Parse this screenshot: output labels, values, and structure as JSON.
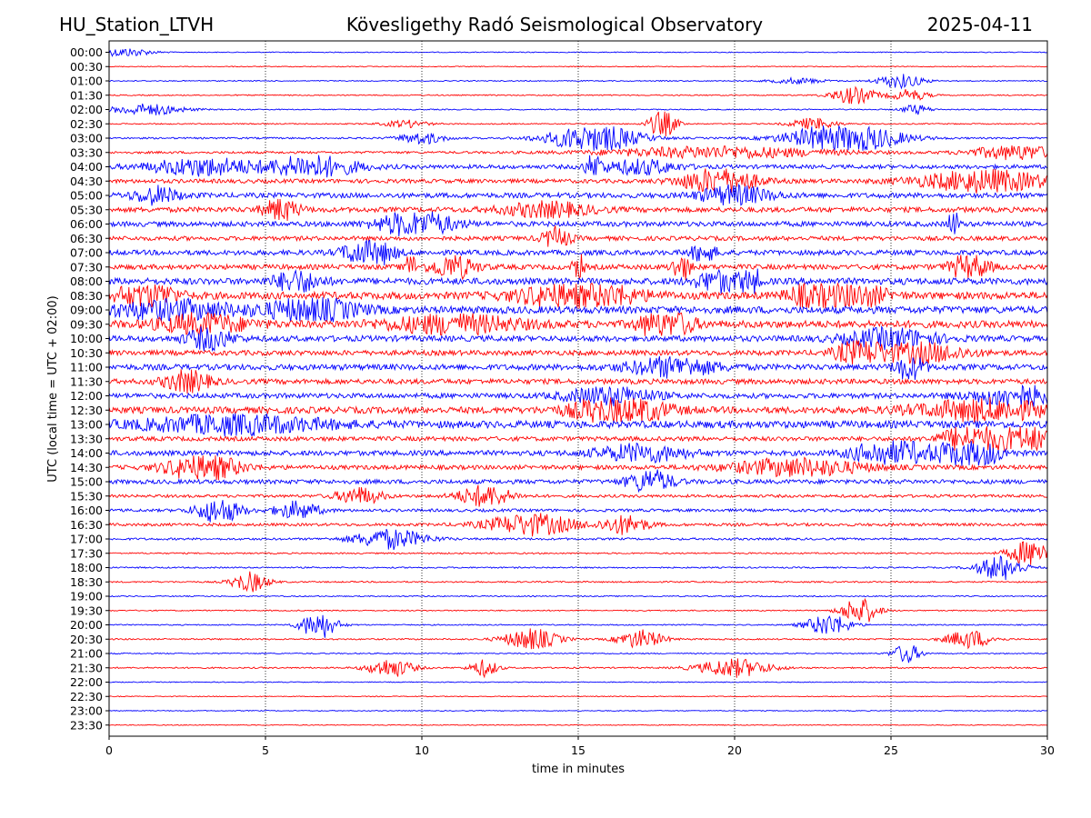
{
  "header": {
    "station": "HU_Station_LTVH",
    "observatory": "Kövesligethy Radó Seismological Observatory",
    "date": "2025-04-11"
  },
  "colors": {
    "even_trace": "#0000ff",
    "odd_trace": "#ff0000",
    "grid": "#000000"
  },
  "chart_data": {
    "type": "line",
    "title": "",
    "xlabel": "time in minutes",
    "ylabel": "UTC (local time = UTC + 02:00)",
    "xlim": [
      0,
      30
    ],
    "x_ticks": [
      "0",
      "5",
      "10",
      "15",
      "20",
      "25",
      "30"
    ],
    "x_gridlines": [
      5,
      10,
      15,
      20,
      25
    ],
    "grid": "vertical dotted",
    "series": [
      {
        "label": "00:00",
        "amplitude": 0.06,
        "bursts": [
          [
            0.5,
            0.6,
            0.6
          ]
        ]
      },
      {
        "label": "00:30",
        "amplitude": 0.06,
        "bursts": []
      },
      {
        "label": "01:00",
        "amplitude": 0.07,
        "bursts": [
          [
            25.3,
            0.5,
            1.0
          ],
          [
            22.0,
            0.6,
            0.4
          ]
        ]
      },
      {
        "label": "01:30",
        "amplitude": 0.08,
        "bursts": [
          [
            23.8,
            0.5,
            1.2
          ],
          [
            25.6,
            0.4,
            0.8
          ]
        ]
      },
      {
        "label": "02:00",
        "amplitude": 0.08,
        "bursts": [
          [
            1.2,
            0.8,
            0.8
          ],
          [
            25.8,
            0.3,
            0.7
          ]
        ]
      },
      {
        "label": "02:30",
        "amplitude": 0.08,
        "bursts": [
          [
            17.7,
            0.3,
            2.0
          ],
          [
            22.5,
            0.5,
            0.8
          ],
          [
            9.5,
            0.5,
            0.5
          ]
        ]
      },
      {
        "label": "03:00",
        "amplitude": 0.12,
        "bursts": [
          [
            15.5,
            1.0,
            2.0
          ],
          [
            23.5,
            1.2,
            2.2
          ],
          [
            10.0,
            0.5,
            0.8
          ]
        ]
      },
      {
        "label": "03:30",
        "amplitude": 0.16,
        "bursts": [
          [
            19.5,
            2.5,
            0.8
          ],
          [
            29.0,
            1.0,
            1.0
          ]
        ]
      },
      {
        "label": "04:00",
        "amplitude": 0.28,
        "bursts": [
          [
            6.5,
            1.0,
            1.5
          ],
          [
            3.0,
            1.2,
            1.2
          ],
          [
            15.5,
            0.2,
            1.6
          ],
          [
            17.0,
            0.8,
            1.0
          ]
        ]
      },
      {
        "label": "04:30",
        "amplitude": 0.28,
        "bursts": [
          [
            19.5,
            0.8,
            2.0
          ],
          [
            28.0,
            1.5,
            1.5
          ]
        ]
      },
      {
        "label": "05:00",
        "amplitude": 0.35,
        "bursts": [
          [
            1.5,
            0.5,
            1.2
          ],
          [
            20.0,
            0.8,
            1.3
          ]
        ]
      },
      {
        "label": "05:30",
        "amplitude": 0.35,
        "bursts": [
          [
            5.5,
            0.4,
            1.5
          ],
          [
            14.0,
            1.0,
            1.0
          ]
        ]
      },
      {
        "label": "06:00",
        "amplitude": 0.35,
        "bursts": [
          [
            9.8,
            0.8,
            2.0
          ],
          [
            27.0,
            0.1,
            3.0
          ]
        ]
      },
      {
        "label": "06:30",
        "amplitude": 0.3,
        "bursts": [
          [
            14.3,
            0.3,
            1.5
          ]
        ]
      },
      {
        "label": "07:00",
        "amplitude": 0.35,
        "bursts": [
          [
            8.3,
            0.5,
            2.5
          ],
          [
            19.0,
            0.3,
            1.2
          ]
        ]
      },
      {
        "label": "07:30",
        "amplitude": 0.35,
        "bursts": [
          [
            9.6,
            0.1,
            4.0
          ],
          [
            15.0,
            0.1,
            3.8
          ],
          [
            11.0,
            0.5,
            1.6
          ],
          [
            18.3,
            0.2,
            2.0
          ],
          [
            27.5,
            0.4,
            2.0
          ]
        ]
      },
      {
        "label": "08:00",
        "amplitude": 0.45,
        "bursts": [
          [
            20.5,
            0.15,
            5.5
          ],
          [
            19.5,
            0.5,
            1.5
          ],
          [
            6.0,
            0.5,
            1.5
          ]
        ]
      },
      {
        "label": "08:30",
        "amplitude": 0.5,
        "bursts": [
          [
            1.2,
            0.6,
            2.2
          ],
          [
            15.0,
            1.2,
            2.2
          ],
          [
            22.5,
            0.5,
            2.0
          ],
          [
            24.0,
            0.6,
            1.5
          ]
        ]
      },
      {
        "label": "09:00",
        "amplitude": 0.5,
        "bursts": [
          [
            6.5,
            1.0,
            1.6
          ],
          [
            2.0,
            1.5,
            1.2
          ]
        ]
      },
      {
        "label": "09:30",
        "amplitude": 0.5,
        "bursts": [
          [
            17.8,
            0.5,
            3.0
          ],
          [
            3.0,
            1.0,
            1.3
          ],
          [
            11.0,
            1.5,
            1.2
          ]
        ]
      },
      {
        "label": "10:00",
        "amplitude": 0.4,
        "bursts": [
          [
            3.2,
            0.5,
            1.5
          ],
          [
            25.0,
            1.0,
            1.3
          ]
        ]
      },
      {
        "label": "10:30",
        "amplitude": 0.35,
        "bursts": [
          [
            24.0,
            0.5,
            2.0
          ],
          [
            26.0,
            1.0,
            1.3
          ]
        ]
      },
      {
        "label": "11:00",
        "amplitude": 0.4,
        "bursts": [
          [
            25.6,
            0.3,
            2.2
          ],
          [
            18.0,
            1.0,
            1.3
          ]
        ]
      },
      {
        "label": "11:30",
        "amplitude": 0.35,
        "bursts": [
          [
            2.5,
            0.5,
            1.5
          ]
        ]
      },
      {
        "label": "12:00",
        "amplitude": 0.35,
        "bursts": [
          [
            29.0,
            1.0,
            1.4
          ],
          [
            16.0,
            1.0,
            1.2
          ]
        ]
      },
      {
        "label": "12:30",
        "amplitude": 0.45,
        "bursts": [
          [
            16.3,
            1.0,
            2.2
          ],
          [
            28.0,
            1.5,
            1.4
          ]
        ]
      },
      {
        "label": "13:00",
        "amplitude": 0.5,
        "bursts": [
          [
            4.0,
            2.0,
            1.2
          ]
        ]
      },
      {
        "label": "13:30",
        "amplitude": 0.3,
        "bursts": [
          [
            29.5,
            0.8,
            2.5
          ],
          [
            27.5,
            0.6,
            2.0
          ]
        ]
      },
      {
        "label": "14:00",
        "amplitude": 0.35,
        "bursts": [
          [
            27.5,
            0.6,
            3.0
          ],
          [
            25.0,
            0.8,
            2.0
          ],
          [
            17.0,
            1.0,
            1.2
          ]
        ]
      },
      {
        "label": "14:30",
        "amplitude": 0.3,
        "bursts": [
          [
            3.0,
            0.8,
            2.0
          ],
          [
            22.0,
            1.5,
            1.2
          ]
        ]
      },
      {
        "label": "15:00",
        "amplitude": 0.3,
        "bursts": [
          [
            17.3,
            0.5,
            1.6
          ]
        ]
      },
      {
        "label": "15:30",
        "amplitude": 0.2,
        "bursts": [
          [
            12.0,
            0.6,
            1.5
          ],
          [
            8.0,
            0.5,
            1.2
          ]
        ]
      },
      {
        "label": "16:00",
        "amplitude": 0.2,
        "bursts": [
          [
            3.5,
            0.5,
            1.8
          ],
          [
            6.0,
            0.5,
            1.2
          ]
        ]
      },
      {
        "label": "16:30",
        "amplitude": 0.2,
        "bursts": [
          [
            13.5,
            1.0,
            1.5
          ],
          [
            16.5,
            0.5,
            1.3
          ]
        ]
      },
      {
        "label": "17:00",
        "amplitude": 0.15,
        "bursts": [
          [
            9.0,
            0.8,
            1.4
          ]
        ]
      },
      {
        "label": "17:30",
        "amplitude": 0.1,
        "bursts": [
          [
            29.5,
            0.5,
            2.0
          ]
        ]
      },
      {
        "label": "18:00",
        "amplitude": 0.1,
        "bursts": [
          [
            28.5,
            0.5,
            1.8
          ]
        ]
      },
      {
        "label": "18:30",
        "amplitude": 0.1,
        "bursts": [
          [
            4.5,
            0.4,
            1.4
          ]
        ]
      },
      {
        "label": "19:00",
        "amplitude": 0.08,
        "bursts": []
      },
      {
        "label": "19:30",
        "amplitude": 0.08,
        "bursts": [
          [
            24.0,
            0.4,
            2.0
          ]
        ]
      },
      {
        "label": "20:00",
        "amplitude": 0.08,
        "bursts": [
          [
            6.7,
            0.4,
            2.0
          ],
          [
            23.0,
            0.5,
            1.5
          ]
        ]
      },
      {
        "label": "20:30",
        "amplitude": 0.1,
        "bursts": [
          [
            13.5,
            0.6,
            1.5
          ],
          [
            17.0,
            0.5,
            1.3
          ],
          [
            27.5,
            0.5,
            1.3
          ]
        ]
      },
      {
        "label": "21:00",
        "amplitude": 0.08,
        "bursts": [
          [
            25.5,
            0.3,
            1.4
          ]
        ]
      },
      {
        "label": "21:30",
        "amplitude": 0.1,
        "bursts": [
          [
            9.0,
            0.5,
            1.3
          ],
          [
            20.0,
            0.8,
            1.3
          ],
          [
            12.0,
            0.3,
            1.2
          ]
        ]
      },
      {
        "label": "22:00",
        "amplitude": 0.06,
        "bursts": []
      },
      {
        "label": "22:30",
        "amplitude": 0.06,
        "bursts": []
      },
      {
        "label": "23:00",
        "amplitude": 0.06,
        "bursts": []
      },
      {
        "label": "23:30",
        "amplitude": 0.06,
        "bursts": []
      }
    ]
  }
}
